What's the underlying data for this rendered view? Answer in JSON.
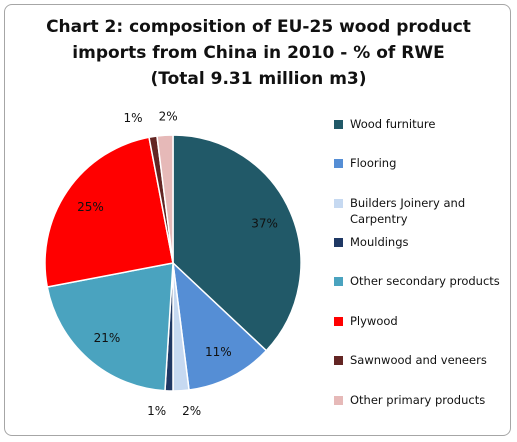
{
  "chart_data": {
    "type": "pie",
    "title_lines": [
      "Chart 2: composition of EU-25 wood product",
      "imports from China in 2010 - % of RWE",
      "(Total 9.31 million m3)"
    ],
    "slices": [
      {
        "label": "Wood furniture",
        "value": 37,
        "data_label": "37%",
        "color": "#215968"
      },
      {
        "label": "Flooring",
        "value": 11,
        "data_label": "11%",
        "color": "#558ed5"
      },
      {
        "label": "Builders Joinery and Carpentry",
        "value": 2,
        "data_label": "2%",
        "color": "#c6d9f1"
      },
      {
        "label": "Mouldings",
        "value": 1,
        "data_label": "1%",
        "color": "#1f3864"
      },
      {
        "label": "Other secondary products",
        "value": 21,
        "data_label": "21%",
        "color": "#4aa3bf"
      },
      {
        "label": "Plywood",
        "value": 25,
        "data_label": "25%",
        "color": "#ff0000"
      },
      {
        "label": "Sawnwood and veneers",
        "value": 1,
        "data_label": "1%",
        "color": "#632523"
      },
      {
        "label": "Other primary products",
        "value": 2,
        "data_label": "2%",
        "color": "#e6b9b8"
      }
    ],
    "legend_position": "right"
  }
}
